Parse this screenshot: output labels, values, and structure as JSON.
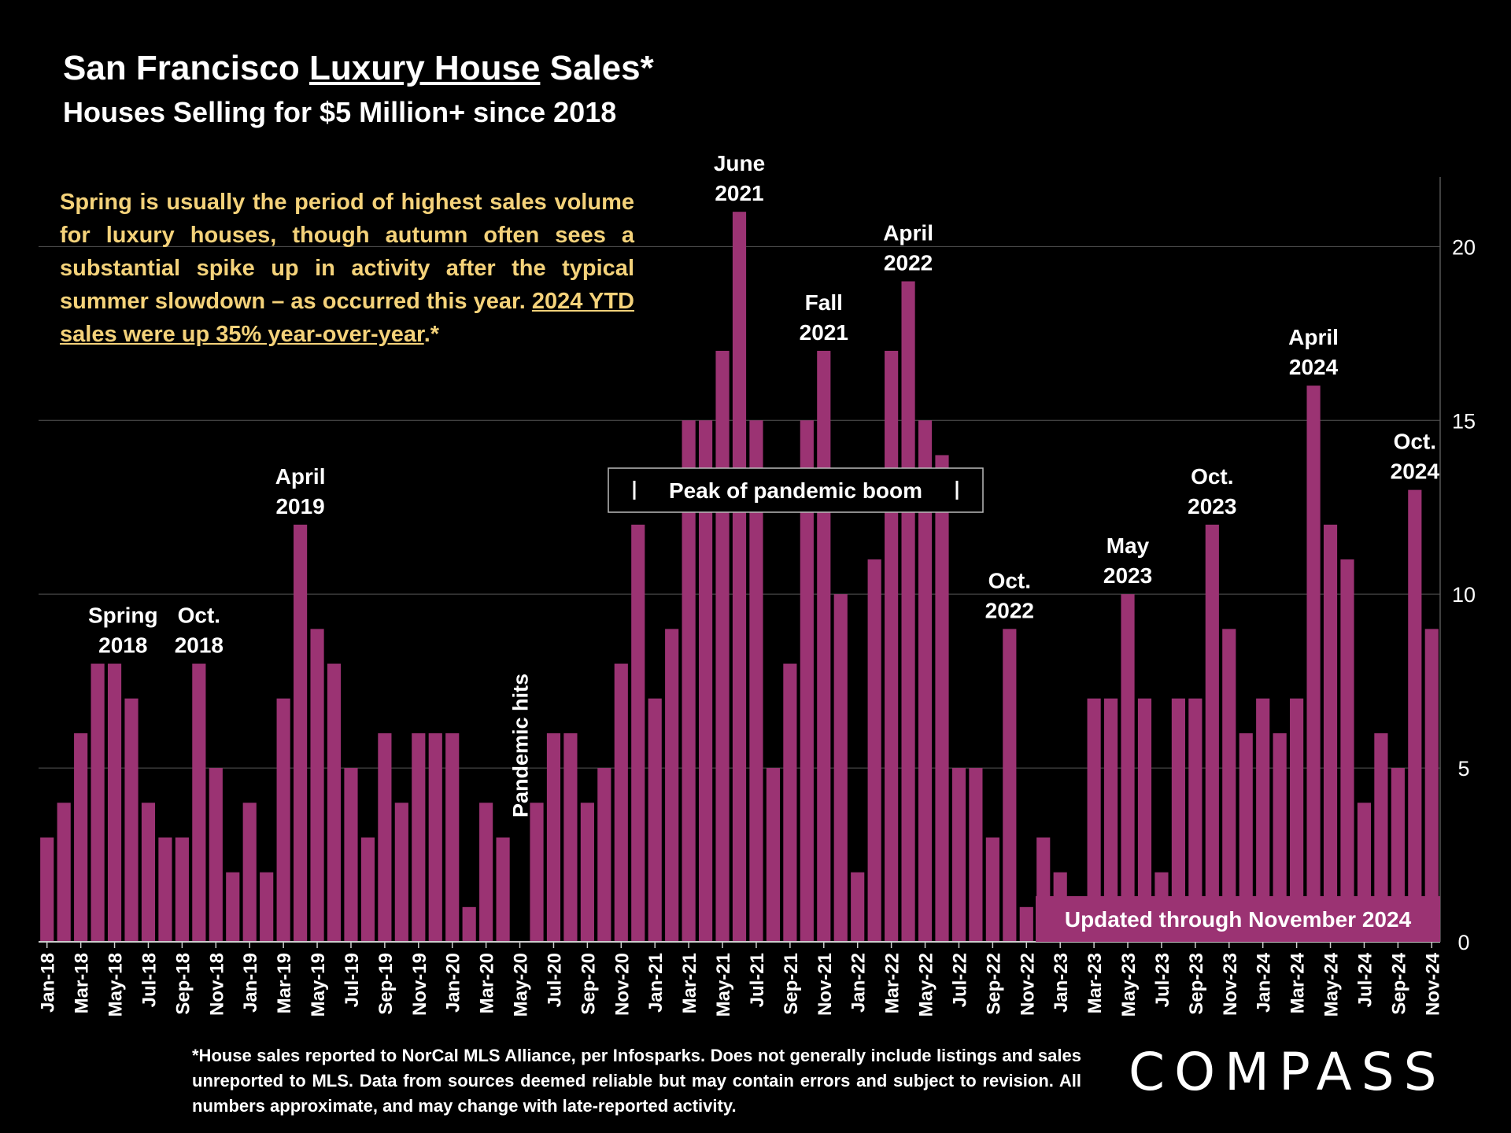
{
  "header": {
    "title_pre": "San Francisco ",
    "title_underlined": "Luxury House",
    "title_post": " Sales*",
    "subtitle": "Houses Selling for $5 Million+ since 2018"
  },
  "commentary": {
    "text": "Spring is usually the period of highest sales volume for luxury houses, though autumn often sees a substantial spike up in activity after the typical summer slowdown – as occurred this year. ",
    "highlight": "2024 YTD sales were up 35% year-over-year",
    "suffix": ".*"
  },
  "footnote": "*House sales reported to NorCal MLS Alliance, per Infosparks. Does not generally include listings and sales unreported to MLS. Data from sources deemed reliable but may contain errors and subject to revision.  All numbers approximate, and may change with late-reported activity.",
  "logo": "COMPASS",
  "colors": {
    "bar": "#9b3373",
    "background": "#000000",
    "commentary": "#f4d27a",
    "grid": "#555555"
  },
  "chart_data": {
    "type": "bar",
    "title": "San Francisco Luxury House Sales*",
    "subtitle": "Houses Selling for $5 Million+ since 2018",
    "y_axis_position": "right",
    "ylim": [
      0,
      22
    ],
    "yticks": [
      0,
      5,
      10,
      15,
      20
    ],
    "grid": true,
    "x_tick_every": 2,
    "categories": [
      "Jan-18",
      "Feb-18",
      "Mar-18",
      "Apr-18",
      "May-18",
      "Jun-18",
      "Jul-18",
      "Aug-18",
      "Sep-18",
      "Oct-18",
      "Nov-18",
      "Dec-18",
      "Jan-19",
      "Feb-19",
      "Mar-19",
      "Apr-19",
      "May-19",
      "Jun-19",
      "Jul-19",
      "Aug-19",
      "Sep-19",
      "Oct-19",
      "Nov-19",
      "Dec-19",
      "Jan-20",
      "Feb-20",
      "Mar-20",
      "Apr-20",
      "May-20",
      "Jun-20",
      "Jul-20",
      "Aug-20",
      "Sep-20",
      "Oct-20",
      "Nov-20",
      "Dec-20",
      "Jan-21",
      "Feb-21",
      "Mar-21",
      "Apr-21",
      "May-21",
      "Jun-21",
      "Jul-21",
      "Aug-21",
      "Sep-21",
      "Oct-21",
      "Nov-21",
      "Dec-21",
      "Jan-22",
      "Feb-22",
      "Mar-22",
      "Apr-22",
      "May-22",
      "Jun-22",
      "Jul-22",
      "Aug-22",
      "Sep-22",
      "Oct-22",
      "Nov-22",
      "Dec-22",
      "Jan-23",
      "Feb-23",
      "Mar-23",
      "Apr-23",
      "May-23",
      "Jun-23",
      "Jul-23",
      "Aug-23",
      "Sep-23",
      "Oct-23",
      "Nov-23",
      "Dec-23",
      "Jan-24",
      "Feb-24",
      "Mar-24",
      "Apr-24",
      "May-24",
      "Jun-24",
      "Jul-24",
      "Aug-24",
      "Sep-24",
      "Oct-24",
      "Nov-24"
    ],
    "values": [
      3,
      4,
      6,
      8,
      8,
      7,
      4,
      3,
      3,
      8,
      5,
      2,
      4,
      2,
      7,
      12,
      9,
      8,
      5,
      3,
      6,
      4,
      6,
      6,
      6,
      1,
      4,
      3,
      0,
      4,
      6,
      6,
      4,
      5,
      8,
      12,
      7,
      9,
      15,
      15,
      17,
      21,
      15,
      5,
      8,
      15,
      17,
      10,
      2,
      11,
      17,
      19,
      15,
      14,
      5,
      5,
      3,
      9,
      1,
      3,
      2,
      1,
      7,
      7,
      10,
      7,
      2,
      7,
      7,
      12,
      9,
      6,
      7,
      6,
      7,
      16,
      12,
      11,
      4,
      6,
      5,
      13,
      9
    ],
    "annotations": [
      {
        "index": 4.5,
        "lines": [
          "Spring",
          "2018"
        ]
      },
      {
        "index": 9,
        "lines": [
          "Oct.",
          "2018"
        ]
      },
      {
        "index": 15,
        "lines": [
          "April",
          "2019"
        ]
      },
      {
        "index": 41,
        "lines": [
          "June",
          "2021"
        ]
      },
      {
        "index": 46,
        "lines": [
          "Fall",
          "2021"
        ]
      },
      {
        "index": 51,
        "lines": [
          "April",
          "2022"
        ]
      },
      {
        "index": 57,
        "lines": [
          "Oct.",
          "2022"
        ]
      },
      {
        "index": 64,
        "lines": [
          "May",
          "2023"
        ]
      },
      {
        "index": 69,
        "lines": [
          "Oct.",
          "2023"
        ]
      },
      {
        "index": 75,
        "lines": [
          "April",
          "2024"
        ]
      },
      {
        "index": 81,
        "lines": [
          "Oct.",
          "2024"
        ]
      }
    ],
    "pandemic_label": {
      "index": 28,
      "text": "Pandemic hits"
    },
    "boom_box": {
      "text": "Peak of pandemic boom"
    },
    "updated_label": "Updated through November 2024"
  }
}
